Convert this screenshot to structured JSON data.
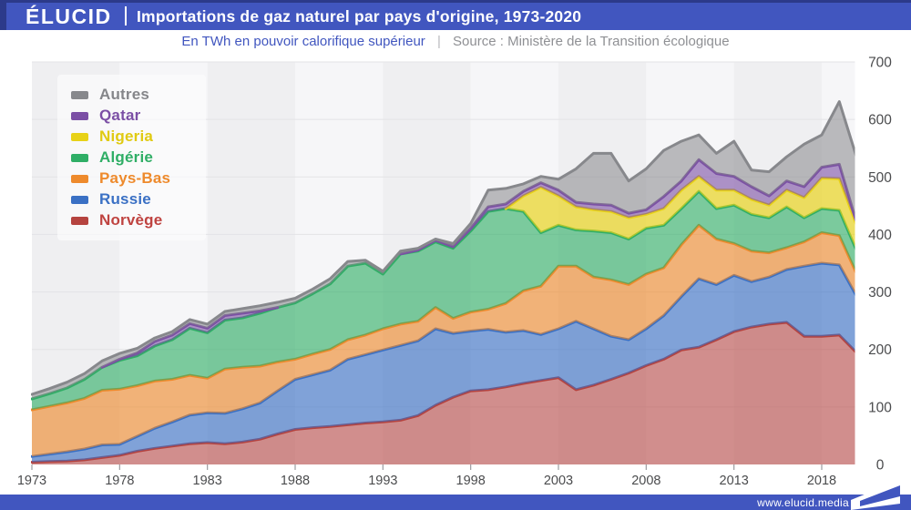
{
  "header": {
    "logo": "ÉLUCID",
    "title": "Importations de gaz naturel par pays d'origine, 1973-2020"
  },
  "subheader": {
    "unit_label": "En TWh en pouvoir calorifique supérieur",
    "separator": "|",
    "source_label": "Source : Ministère de la Transition écologique"
  },
  "footer": {
    "url": "www.elucid.media"
  },
  "colors": {
    "header_bg": "#4156bf",
    "header_accent": "#2c3a8a",
    "axis_text": "#4b4c4e",
    "grid_line": "#e3e3e6",
    "stripe_dark": "#efeff1",
    "stripe_light": "#f6f6f8",
    "tick": "#9b9ca0"
  },
  "chart_data": {
    "type": "area",
    "stacked": true,
    "title": "Importations de gaz naturel par pays d'origine, 1973-2020",
    "unit": "TWh (pouvoir calorifique supérieur)",
    "x": [
      1973,
      1974,
      1975,
      1976,
      1977,
      1978,
      1979,
      1980,
      1981,
      1982,
      1983,
      1984,
      1985,
      1986,
      1987,
      1988,
      1989,
      1990,
      1991,
      1992,
      1993,
      1994,
      1995,
      1996,
      1997,
      1998,
      1999,
      2000,
      2001,
      2002,
      2003,
      2004,
      2005,
      2006,
      2007,
      2008,
      2009,
      2010,
      2011,
      2012,
      2013,
      2014,
      2015,
      2016,
      2017,
      2018,
      2019,
      2020
    ],
    "xticks": [
      1973,
      1978,
      1983,
      1988,
      1993,
      1998,
      2003,
      2008,
      2013,
      2018
    ],
    "yticks": [
      0,
      100,
      200,
      300,
      400,
      500,
      600,
      700
    ],
    "ylim": [
      0,
      700
    ],
    "grid": "horizontal",
    "legend_position": "top-left",
    "legend_order": "reverse-of-stack",
    "series": [
      {
        "name": "Norvège",
        "color": "#b5433f",
        "label_color": "#bf4340",
        "fill": "rgba(183,67,64,0.58)",
        "values": [
          4,
          5,
          6,
          8,
          12,
          16,
          23,
          28,
          32,
          36,
          38,
          36,
          39,
          44,
          53,
          61,
          64,
          66,
          69,
          72,
          74,
          77,
          85,
          103,
          117,
          128,
          130,
          135,
          141,
          146,
          151,
          130,
          138,
          148,
          159,
          172,
          183,
          199,
          204,
          217,
          231,
          239,
          244,
          247,
          223,
          223,
          225,
          194
        ]
      },
      {
        "name": "Russie",
        "color": "#3a70c4",
        "label_color": "#3a70c4",
        "fill": "rgba(58,112,196,0.63)",
        "values": [
          10,
          13,
          16,
          19,
          22,
          19,
          26,
          35,
          42,
          50,
          52,
          53,
          58,
          63,
          75,
          87,
          92,
          98,
          114,
          119,
          125,
          130,
          130,
          133,
          111,
          104,
          105,
          95,
          92,
          80,
          85,
          119,
          98,
          75,
          58,
          64,
          76,
          93,
          119,
          96,
          98,
          79,
          82,
          92,
          122,
          127,
          122,
          98
        ]
      },
      {
        "name": "Pays-Bas",
        "color": "#ee8a2c",
        "label_color": "#ee8a2c",
        "fill": "rgba(238,138,44,0.63)",
        "values": [
          81,
          83,
          85,
          88,
          95,
          96,
          88,
          82,
          74,
          69,
          60,
          77,
          72,
          64,
          50,
          35,
          36,
          36,
          34,
          34,
          37,
          37,
          34,
          37,
          26,
          33,
          35,
          50,
          69,
          84,
          109,
          96,
          90,
          98,
          96,
          95,
          83,
          90,
          93,
          79,
          55,
          53,
          42,
          38,
          42,
          53,
          51,
          39
        ]
      },
      {
        "name": "Algérie",
        "color": "#2fae66",
        "label_color": "#2fae66",
        "fill": "rgba(47,174,102,0.62)",
        "values": [
          19,
          22,
          26,
          33,
          40,
          50,
          52,
          61,
          69,
          82,
          79,
          85,
          86,
          92,
          95,
          98,
          105,
          114,
          128,
          125,
          95,
          122,
          122,
          114,
          122,
          141,
          170,
          165,
          138,
          93,
          71,
          63,
          80,
          82,
          79,
          80,
          74,
          63,
          59,
          53,
          67,
          64,
          61,
          71,
          42,
          42,
          44,
          40
        ]
      },
      {
        "name": "Nigeria",
        "color": "#e8d217",
        "label_color": "#e0ca12",
        "fill": "rgba(232,210,23,0.67)",
        "values": [
          0,
          0,
          0,
          0,
          0,
          0,
          0,
          0,
          0,
          0,
          0,
          0,
          0,
          0,
          0,
          0,
          0,
          0,
          0,
          0,
          0,
          0,
          0,
          0,
          0,
          0,
          0,
          0,
          27,
          79,
          51,
          40,
          37,
          37,
          37,
          24,
          29,
          32,
          26,
          32,
          26,
          26,
          22,
          29,
          35,
          53,
          55,
          44
        ]
      },
      {
        "name": "Qatar",
        "color": "#7b4fa5",
        "label_color": "#7b4fa5",
        "fill": "rgba(123,79,165,0.6)",
        "values": [
          0,
          0,
          0,
          0,
          0,
          2,
          5,
          8,
          8,
          8,
          8,
          8,
          8,
          4,
          0,
          0,
          0,
          0,
          0,
          0,
          0,
          0,
          2,
          3,
          3,
          5,
          8,
          8,
          8,
          8,
          10,
          8,
          10,
          11,
          8,
          8,
          21,
          16,
          29,
          29,
          24,
          22,
          16,
          16,
          19,
          19,
          25,
          5
        ]
      },
      {
        "name": "Autres",
        "color": "#87888c",
        "label_color": "#85868a",
        "fill": "rgba(135,135,139,0.55)",
        "values": [
          8,
          9,
          10,
          10,
          11,
          10,
          8,
          6,
          6,
          7,
          7,
          7,
          8,
          9,
          9,
          8,
          8,
          9,
          8,
          5,
          5,
          5,
          3,
          2,
          5,
          8,
          29,
          27,
          13,
          11,
          19,
          58,
          88,
          90,
          56,
          71,
          80,
          69,
          43,
          35,
          61,
          29,
          42,
          42,
          74,
          56,
          109,
          113
        ]
      }
    ]
  }
}
